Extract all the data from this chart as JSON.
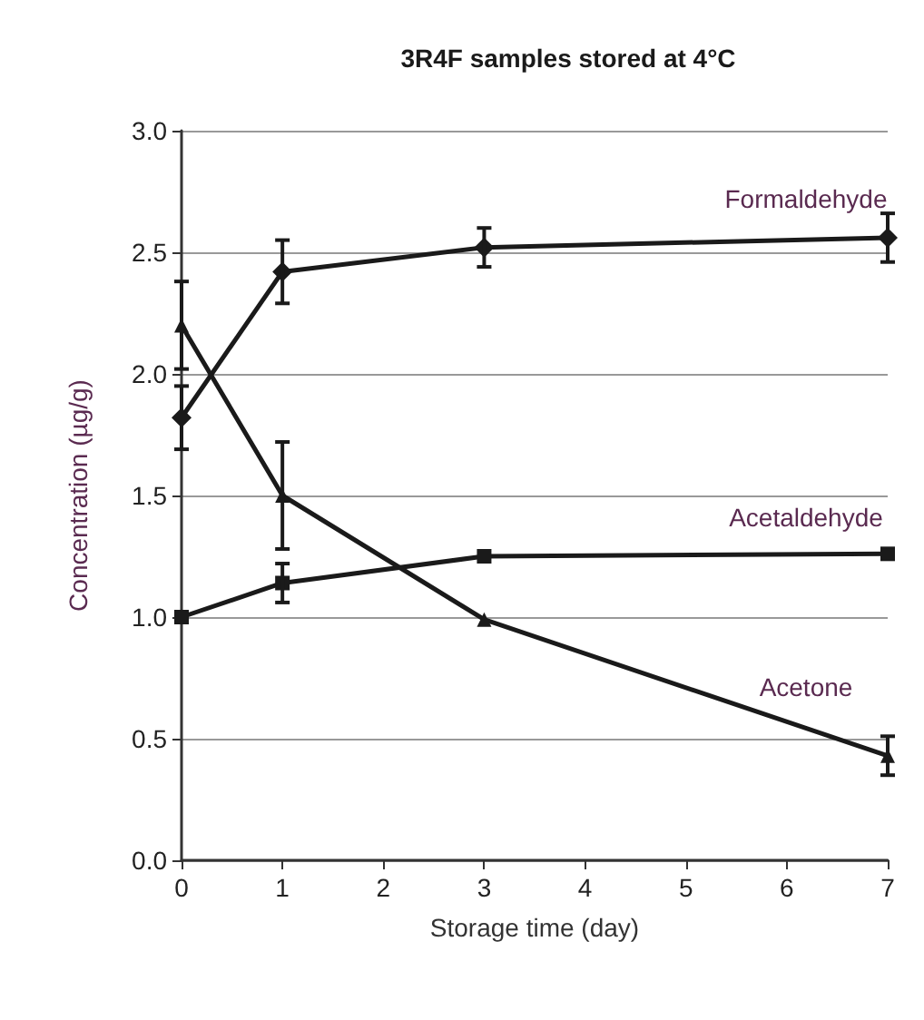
{
  "chart_data": {
    "type": "line",
    "title": "3R4F samples stored at 4°C",
    "xlabel": "Storage time (day)",
    "ylabel": "Concentration (µg/g)",
    "x": [
      0,
      1,
      3,
      7
    ],
    "series": [
      {
        "name": "Formaldehyde",
        "color": "#1a1a1a",
        "marker": "diamond",
        "values": [
          1.82,
          2.42,
          2.52,
          2.56
        ],
        "errors": [
          0.13,
          0.13,
          0.08,
          0.1
        ]
      },
      {
        "name": "Acetaldehyde",
        "color": "#1a1a1a",
        "marker": "square",
        "values": [
          1.0,
          1.14,
          1.25,
          1.26
        ],
        "errors": [
          null,
          0.08,
          null,
          null
        ]
      },
      {
        "name": "Acetone",
        "color": "#1a1a1a",
        "marker": "triangle",
        "values": [
          2.2,
          1.5,
          0.99,
          0.43
        ],
        "errors": [
          0.18,
          0.22,
          null,
          0.08
        ]
      }
    ],
    "xlim": [
      0,
      7
    ],
    "xticks": [
      0,
      1,
      2,
      3,
      4,
      5,
      6,
      7
    ],
    "ylim": [
      0,
      3
    ],
    "yticks": [
      {
        "value": 0,
        "label": "0.0"
      },
      0.5,
      {
        "value": 1,
        "label": "1.0"
      },
      1.5,
      {
        "value": 2,
        "label": "2.0"
      },
      2.5,
      {
        "value": 3,
        "label": "3.0"
      }
    ],
    "grid": "y",
    "legend": false,
    "line_style": "solid"
  }
}
